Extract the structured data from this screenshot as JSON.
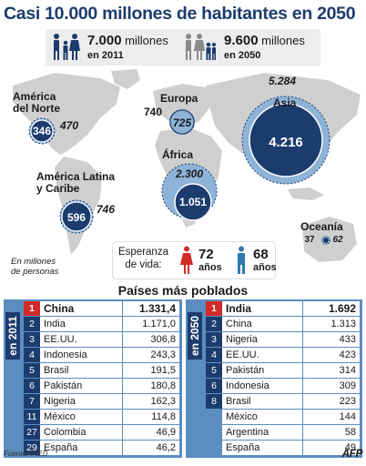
{
  "title": "Casi 10.000 millones de habitantes en 2050",
  "banner": {
    "pop_2011_value": "7.000",
    "pop_2011_unit": "millones",
    "pop_2011_year": "en 2011",
    "pop_2050_value": "9.600",
    "pop_2050_unit": "millones",
    "pop_2050_year": "en 2050"
  },
  "regions": {
    "north_america": {
      "name_line1": "América",
      "name_line2": "del Norte",
      "v2011": "346",
      "v2050": "470"
    },
    "europe": {
      "name": "Europa",
      "v2011": "740",
      "v2050": "725"
    },
    "asia": {
      "name": "Asia",
      "v2011": "4.216",
      "v2050": "5.284"
    },
    "africa": {
      "name": "África",
      "v2011": "1.051",
      "v2050": "2.300"
    },
    "latin_america": {
      "name_line1": "América Latina",
      "name_line2": "y Caribe",
      "v2011": "596",
      "v2050": "746"
    },
    "oceania": {
      "name": "Oceanía",
      "v2011": "37",
      "v2050": "62"
    }
  },
  "units_note": {
    "line1": "En millones",
    "line2": "de personas"
  },
  "life_expectancy": {
    "label_line1": "Esperanza",
    "label_line2": "de vida:",
    "female_value": "72",
    "female_unit": "años",
    "male_value": "68",
    "male_unit": "años"
  },
  "section_title": "Países más poblados",
  "table_2011": {
    "label": "en 2011",
    "rows": [
      {
        "rank": "1",
        "country": "China",
        "value": "1.331,4"
      },
      {
        "rank": "2",
        "country": "India",
        "value": "1.171,0"
      },
      {
        "rank": "3",
        "country": "EE.UU.",
        "value": "306,8"
      },
      {
        "rank": "4",
        "country": "Indonesia",
        "value": "243,3"
      },
      {
        "rank": "5",
        "country": "Brasil",
        "value": "191,5"
      },
      {
        "rank": "6",
        "country": "Pakistán",
        "value": "180,8"
      },
      {
        "rank": "7",
        "country": "Nigeria",
        "value": "162,3"
      },
      {
        "rank": "11",
        "country": "México",
        "value": "114,8"
      },
      {
        "rank": "27",
        "country": "Colombia",
        "value": "46,9"
      },
      {
        "rank": "29",
        "country": "España",
        "value": "46,2"
      }
    ]
  },
  "table_2050": {
    "label": "en 2050",
    "rows": [
      {
        "rank": "1",
        "country": "India",
        "value": "1.692"
      },
      {
        "rank": "2",
        "country": "China",
        "value": "1.313"
      },
      {
        "rank": "3",
        "country": "Nigeria",
        "value": "433"
      },
      {
        "rank": "4",
        "country": "EE.UU.",
        "value": "423"
      },
      {
        "rank": "5",
        "country": "Pakistán",
        "value": "314"
      },
      {
        "rank": "6",
        "country": "Indonesia",
        "value": "309"
      },
      {
        "rank": "8",
        "country": "Brasil",
        "value": "223"
      },
      {
        "rank": "",
        "country": "México",
        "value": "144"
      },
      {
        "rank": "",
        "country": "Argentina",
        "value": "58"
      },
      {
        "rank": "",
        "country": "España",
        "value": "49"
      }
    ]
  },
  "source": "Fuente: INED",
  "agency": "AFP",
  "colors": {
    "navy": "#1d3c6e",
    "table_blue": "#5b8dc0",
    "circle_light": "#8db3d8",
    "red": "#d32a2a",
    "land": "#cfcfcf"
  }
}
